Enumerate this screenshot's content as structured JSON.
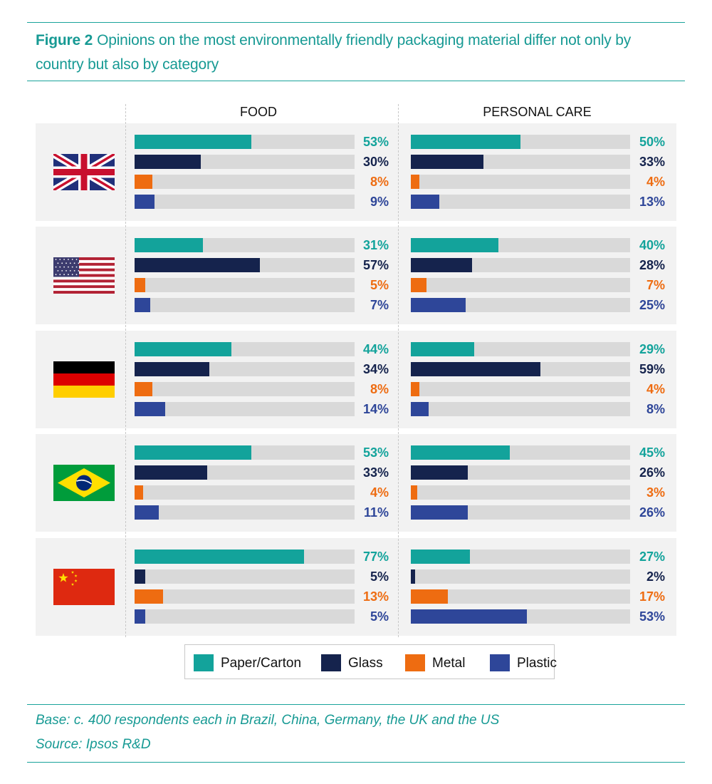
{
  "figure": {
    "label": "Figure 2",
    "title": "Opinions on the most environmentally friendly packaging material differ not only by country but also by category"
  },
  "colors": {
    "accent": "#1aa39b",
    "Paper/Carton": "#13a39b",
    "Glass": "#15234d",
    "Metal": "#ee6c11",
    "Plastic": "#2e4699",
    "track": "#d9d9d9",
    "panel": "#f2f2f2"
  },
  "legend": [
    {
      "name": "Paper/Carton"
    },
    {
      "name": "Glass"
    },
    {
      "name": "Metal"
    },
    {
      "name": "Plastic"
    }
  ],
  "footer": {
    "base": "Base: c. 400 respondents each in Brazil, China, Germany, the UK and the US",
    "source": "Source: Ipsos R&D"
  },
  "chart_data": {
    "type": "bar",
    "title": "Opinions on the most environmentally friendly packaging material differ not only by country but also by category",
    "unit": "%",
    "xlim": [
      0,
      100
    ],
    "columns": [
      "FOOD",
      "PERSONAL CARE"
    ],
    "series_names": [
      "Paper/Carton",
      "Glass",
      "Metal",
      "Plastic"
    ],
    "groups": [
      {
        "country": "UK",
        "flag": "uk-flag",
        "FOOD": [
          53,
          30,
          8,
          9
        ],
        "PERSONAL CARE": [
          50,
          33,
          4,
          13
        ]
      },
      {
        "country": "US",
        "flag": "us-flag",
        "FOOD": [
          31,
          57,
          5,
          7
        ],
        "PERSONAL CARE": [
          40,
          28,
          7,
          25
        ]
      },
      {
        "country": "Germany",
        "flag": "germany-flag",
        "FOOD": [
          44,
          34,
          8,
          14
        ],
        "PERSONAL CARE": [
          29,
          59,
          4,
          8
        ]
      },
      {
        "country": "Brazil",
        "flag": "brazil-flag",
        "FOOD": [
          53,
          33,
          4,
          11
        ],
        "PERSONAL CARE": [
          45,
          26,
          3,
          26
        ]
      },
      {
        "country": "China",
        "flag": "china-flag",
        "FOOD": [
          77,
          5,
          13,
          5
        ],
        "PERSONAL CARE": [
          27,
          2,
          17,
          53
        ]
      }
    ]
  }
}
